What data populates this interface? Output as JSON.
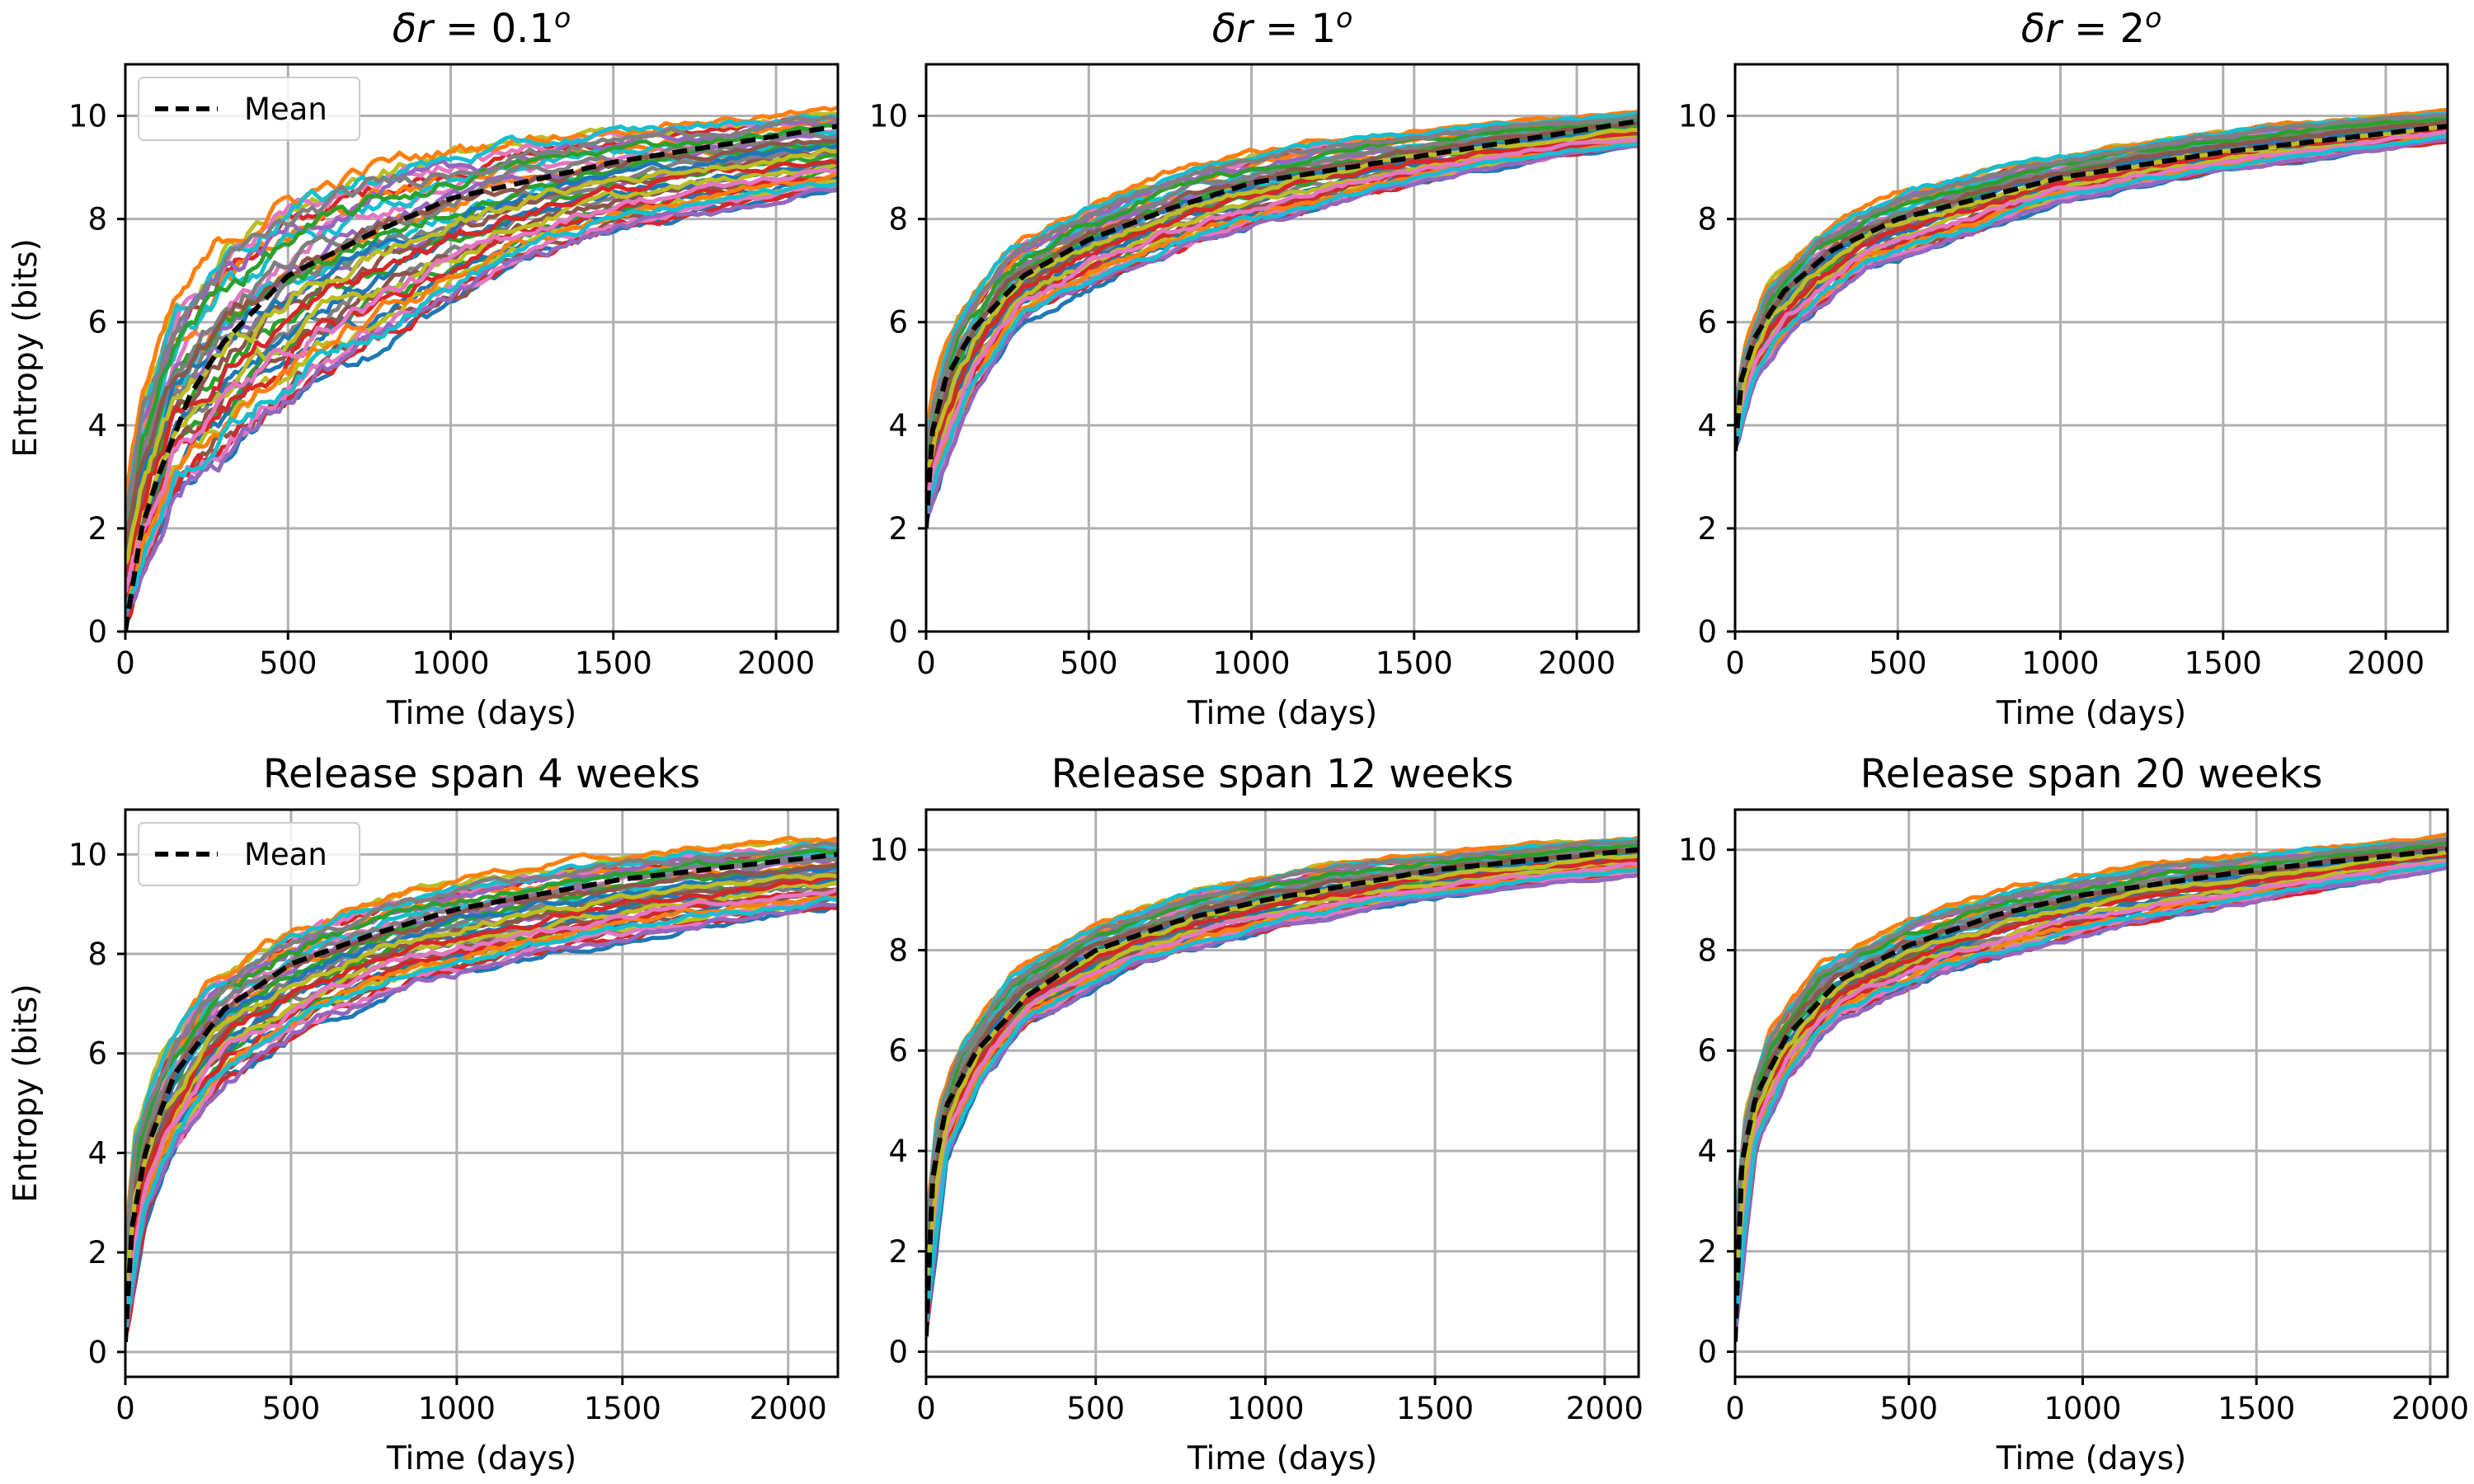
{
  "figure": {
    "background": "#ffffff",
    "grid_color": "#b0b0b0",
    "mean_color": "#000000"
  },
  "palette": [
    "#1f77b4",
    "#ff7f0e",
    "#2ca02c",
    "#d62728",
    "#9467bd",
    "#8c564b",
    "#e377c2",
    "#7f7f7f",
    "#bcbd22",
    "#17becf"
  ],
  "chart_data": [
    {
      "type": "line",
      "title_prefix": "δr",
      "title_rest": " = 0.1",
      "title_sup": "o",
      "xlabel": "Time (days)",
      "ylabel": "Entropy (bits)",
      "xlim": [
        0,
        2190
      ],
      "ylim": [
        0,
        11
      ],
      "xticks": [
        0,
        500,
        1000,
        1500,
        2000
      ],
      "yticks": [
        0,
        2,
        4,
        6,
        8,
        10
      ],
      "grid": true,
      "legend": {
        "position": "upper-left",
        "entries": [
          {
            "label": "Mean",
            "style": "dashed",
            "color": "#000000"
          }
        ]
      },
      "runs_count": 40,
      "mean": {
        "x": [
          0,
          50,
          100,
          200,
          300,
          500,
          750,
          1000,
          1500,
          2190
        ],
        "y": [
          0,
          2.0,
          3.0,
          4.6,
          5.6,
          6.9,
          7.7,
          8.4,
          9.1,
          9.8
        ]
      },
      "envelope_low": {
        "x": [
          0,
          150,
          300,
          600,
          900,
          1200,
          1500,
          2190
        ],
        "y": [
          0,
          2.5,
          3.2,
          4.8,
          5.9,
          7.0,
          7.7,
          8.5
        ]
      },
      "envelope_high": {
        "x": [
          0,
          50,
          150,
          300,
          500,
          800,
          1200,
          1700,
          2190
        ],
        "y": [
          2.6,
          4.8,
          6.5,
          7.8,
          8.6,
          9.3,
          9.7,
          10.0,
          10.2
        ]
      }
    },
    {
      "type": "line",
      "title_prefix": "δr",
      "title_rest": " = 1",
      "title_sup": "o",
      "xlabel": "Time (days)",
      "ylabel": "",
      "xlim": [
        0,
        2190
      ],
      "ylim": [
        0,
        11
      ],
      "xticks": [
        0,
        500,
        1000,
        1500,
        2000
      ],
      "yticks": [
        0,
        2,
        4,
        6,
        8,
        10
      ],
      "grid": true,
      "legend": null,
      "runs_count": 40,
      "mean": {
        "x": [
          0,
          20,
          60,
          150,
          300,
          500,
          750,
          1000,
          1500,
          2190
        ],
        "y": [
          2.0,
          3.9,
          4.9,
          5.9,
          6.9,
          7.6,
          8.2,
          8.7,
          9.2,
          9.9
        ]
      },
      "envelope_low": {
        "x": [
          0,
          60,
          150,
          300,
          600,
          900,
          1300,
          1700,
          2190
        ],
        "y": [
          2.0,
          3.2,
          4.6,
          6.0,
          6.9,
          7.6,
          8.3,
          8.9,
          9.4
        ]
      },
      "envelope_high": {
        "x": [
          0,
          30,
          100,
          250,
          500,
          800,
          1200,
          1700,
          2190
        ],
        "y": [
          3.9,
          5.0,
          6.3,
          7.5,
          8.4,
          9.1,
          9.6,
          9.9,
          10.1
        ]
      }
    },
    {
      "type": "line",
      "title_prefix": "δr",
      "title_rest": " = 2",
      "title_sup": "o",
      "xlabel": "Time (days)",
      "ylabel": "",
      "xlim": [
        0,
        2190
      ],
      "ylim": [
        0,
        11
      ],
      "xticks": [
        0,
        500,
        1000,
        1500,
        2000
      ],
      "yticks": [
        0,
        2,
        4,
        6,
        8,
        10
      ],
      "grid": true,
      "legend": null,
      "runs_count": 40,
      "mean": {
        "x": [
          0,
          20,
          60,
          150,
          300,
          500,
          750,
          1000,
          1500,
          2190
        ],
        "y": [
          3.5,
          4.9,
          5.7,
          6.6,
          7.4,
          8.0,
          8.4,
          8.8,
          9.3,
          9.8
        ]
      },
      "envelope_low": {
        "x": [
          0,
          60,
          150,
          250,
          400,
          700,
          1000,
          1500,
          2190
        ],
        "y": [
          3.5,
          4.8,
          5.6,
          6.2,
          7.0,
          7.6,
          8.3,
          8.9,
          9.5
        ]
      },
      "envelope_high": {
        "x": [
          0,
          30,
          100,
          250,
          500,
          800,
          1200,
          1700,
          2190
        ],
        "y": [
          4.3,
          5.6,
          6.8,
          7.8,
          8.6,
          9.1,
          9.5,
          9.9,
          10.1
        ]
      }
    },
    {
      "type": "line",
      "title": "Release span 4 weeks",
      "xlabel": "Time (days)",
      "ylabel": "Entropy (bits)",
      "xlim": [
        0,
        2150
      ],
      "ylim": [
        -0.5,
        10.9
      ],
      "xticks": [
        0,
        500,
        1000,
        1500,
        2000
      ],
      "yticks": [
        0,
        2,
        4,
        6,
        8,
        10
      ],
      "grid": true,
      "legend": {
        "position": "upper-left",
        "entries": [
          {
            "label": "Mean",
            "style": "dashed",
            "color": "#000000"
          }
        ]
      },
      "runs_count": 40,
      "mean": {
        "x": [
          0,
          20,
          60,
          150,
          300,
          500,
          750,
          1000,
          1500,
          2150
        ],
        "y": [
          0.2,
          2.5,
          4.0,
          5.6,
          6.9,
          7.8,
          8.4,
          8.9,
          9.5,
          10.0
        ]
      },
      "envelope_low": {
        "x": [
          0,
          60,
          150,
          300,
          600,
          900,
          1300,
          1700,
          2150
        ],
        "y": [
          0.2,
          2.6,
          4.0,
          5.4,
          6.6,
          7.4,
          8.0,
          8.5,
          8.9
        ]
      },
      "envelope_high": {
        "x": [
          0,
          30,
          100,
          250,
          500,
          800,
          1200,
          1700,
          2150
        ],
        "y": [
          2.2,
          4.6,
          6.0,
          7.6,
          8.6,
          9.3,
          9.8,
          10.2,
          10.4
        ]
      }
    },
    {
      "type": "line",
      "title": "Release span 12 weeks",
      "xlabel": "Time (days)",
      "ylabel": "",
      "xlim": [
        0,
        2100
      ],
      "ylim": [
        -0.5,
        10.8
      ],
      "xticks": [
        0,
        500,
        1000,
        1500,
        2000
      ],
      "yticks": [
        0,
        2,
        4,
        6,
        8,
        10
      ],
      "grid": true,
      "legend": null,
      "runs_count": 40,
      "mean": {
        "x": [
          0,
          20,
          60,
          150,
          300,
          500,
          750,
          1000,
          1500,
          2100
        ],
        "y": [
          0.3,
          3.5,
          4.9,
          6.0,
          7.1,
          8.0,
          8.6,
          9.0,
          9.6,
          10.0
        ]
      },
      "envelope_low": {
        "x": [
          0,
          60,
          150,
          300,
          600,
          900,
          1300,
          1700,
          2100
        ],
        "y": [
          0.3,
          3.8,
          5.2,
          6.5,
          7.6,
          8.2,
          8.8,
          9.2,
          9.5
        ]
      },
      "envelope_high": {
        "x": [
          0,
          30,
          100,
          250,
          500,
          800,
          1200,
          1700,
          2100
        ],
        "y": [
          2.6,
          4.8,
          6.2,
          7.6,
          8.6,
          9.3,
          9.8,
          10.1,
          10.3
        ]
      }
    },
    {
      "type": "line",
      "title": "Release span 20 weeks",
      "xlabel": "Time (days)",
      "ylabel": "",
      "xlim": [
        0,
        2050
      ],
      "ylim": [
        -0.5,
        10.8
      ],
      "xticks": [
        0,
        500,
        1000,
        1500,
        2000
      ],
      "yticks": [
        0,
        2,
        4,
        6,
        8,
        10
      ],
      "grid": true,
      "legend": null,
      "runs_count": 40,
      "mean": {
        "x": [
          0,
          20,
          60,
          150,
          300,
          500,
          750,
          1000,
          1500,
          2050
        ],
        "y": [
          0.2,
          3.8,
          5.1,
          6.3,
          7.4,
          8.1,
          8.7,
          9.1,
          9.6,
          10.0
        ]
      },
      "envelope_low": {
        "x": [
          0,
          60,
          150,
          300,
          600,
          900,
          1300,
          1700,
          2050
        ],
        "y": [
          0.2,
          4.0,
          5.4,
          6.6,
          7.5,
          8.1,
          8.7,
          9.2,
          9.6
        ]
      },
      "envelope_high": {
        "x": [
          0,
          30,
          100,
          250,
          500,
          800,
          1200,
          1700,
          2050
        ],
        "y": [
          2.6,
          5.0,
          6.5,
          7.8,
          8.7,
          9.3,
          9.8,
          10.1,
          10.3
        ]
      }
    }
  ]
}
